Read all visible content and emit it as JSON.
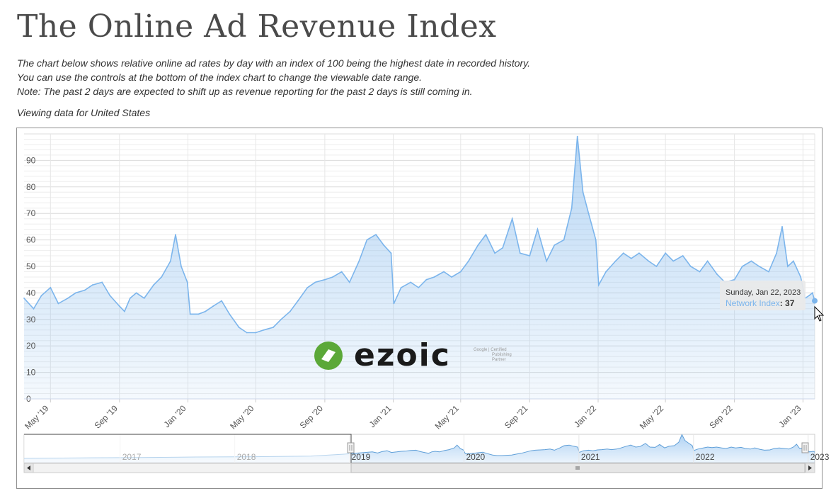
{
  "page": {
    "title": "The Online Ad Revenue Index",
    "desc_line1": "The chart below shows relative online ad rates by day with an index of 100 being the highest date in recorded history.",
    "desc_line2": "You can use the controls at the bottom of the index chart to change the viewable date range.",
    "desc_line3": "Note: The past 2 days are expected to shift up as revenue reporting for the past 2 days is still coming in.",
    "viewing": "Viewing data for United States"
  },
  "colors": {
    "series": "#7cb5ec",
    "grid": "#e6e6e6",
    "frame": "#8f8f8f"
  },
  "logo": {
    "text": "ezoic",
    "badge_line1": "Google | Certified",
    "badge_line2": "Publishing",
    "badge_line3": "Partner"
  },
  "tooltip": {
    "date": "Sunday, Jan 22, 2023",
    "series": "Network Index",
    "value": "37"
  },
  "chart_data": {
    "type": "area",
    "series_name": "Network Index",
    "ylim": [
      0,
      100
    ],
    "yticks": [
      0,
      10,
      20,
      30,
      40,
      50,
      60,
      70,
      80,
      90
    ],
    "xlim": [
      "2019-03-15",
      "2023-01-22"
    ],
    "xticks": [
      {
        "date": "2019-05-01",
        "label": "May '19"
      },
      {
        "date": "2019-09-01",
        "label": "Sep '19"
      },
      {
        "date": "2020-01-01",
        "label": "Jan '20"
      },
      {
        "date": "2020-05-01",
        "label": "May '20"
      },
      {
        "date": "2020-09-01",
        "label": "Sep '20"
      },
      {
        "date": "2021-01-01",
        "label": "Jan '21"
      },
      {
        "date": "2021-05-01",
        "label": "May '21"
      },
      {
        "date": "2021-09-01",
        "label": "Sep '21"
      },
      {
        "date": "2022-01-01",
        "label": "Jan '22"
      },
      {
        "date": "2022-05-01",
        "label": "May '22"
      },
      {
        "date": "2022-09-01",
        "label": "Sep '22"
      },
      {
        "date": "2023-01-01",
        "label": "Jan '23"
      }
    ],
    "points": [
      [
        "2019-03-15",
        38
      ],
      [
        "2019-04-01",
        34
      ],
      [
        "2019-04-15",
        39
      ],
      [
        "2019-05-01",
        42
      ],
      [
        "2019-05-15",
        36
      ],
      [
        "2019-06-01",
        38
      ],
      [
        "2019-06-15",
        40
      ],
      [
        "2019-07-01",
        41
      ],
      [
        "2019-07-15",
        43
      ],
      [
        "2019-08-01",
        44
      ],
      [
        "2019-08-15",
        39
      ],
      [
        "2019-09-01",
        35
      ],
      [
        "2019-09-10",
        33
      ],
      [
        "2019-09-20",
        38
      ],
      [
        "2019-10-01",
        40
      ],
      [
        "2019-10-15",
        38
      ],
      [
        "2019-11-01",
        43
      ],
      [
        "2019-11-15",
        46
      ],
      [
        "2019-12-01",
        52
      ],
      [
        "2019-12-10",
        62
      ],
      [
        "2019-12-20",
        50
      ],
      [
        "2019-12-31",
        44
      ],
      [
        "2020-01-05",
        32
      ],
      [
        "2020-01-20",
        32
      ],
      [
        "2020-02-01",
        33
      ],
      [
        "2020-02-15",
        35
      ],
      [
        "2020-03-01",
        37
      ],
      [
        "2020-03-15",
        32
      ],
      [
        "2020-04-01",
        27
      ],
      [
        "2020-04-15",
        25
      ],
      [
        "2020-05-01",
        25
      ],
      [
        "2020-05-15",
        26
      ],
      [
        "2020-06-01",
        27
      ],
      [
        "2020-06-15",
        30
      ],
      [
        "2020-07-01",
        33
      ],
      [
        "2020-07-15",
        37
      ],
      [
        "2020-08-01",
        42
      ],
      [
        "2020-08-15",
        44
      ],
      [
        "2020-09-01",
        45
      ],
      [
        "2020-09-15",
        46
      ],
      [
        "2020-10-01",
        48
      ],
      [
        "2020-10-15",
        44
      ],
      [
        "2020-11-01",
        52
      ],
      [
        "2020-11-15",
        60
      ],
      [
        "2020-12-01",
        62
      ],
      [
        "2020-12-15",
        58
      ],
      [
        "2020-12-28",
        55
      ],
      [
        "2021-01-02",
        36
      ],
      [
        "2021-01-15",
        42
      ],
      [
        "2021-02-01",
        44
      ],
      [
        "2021-02-15",
        42
      ],
      [
        "2021-03-01",
        45
      ],
      [
        "2021-03-15",
        46
      ],
      [
        "2021-04-01",
        48
      ],
      [
        "2021-04-15",
        46
      ],
      [
        "2021-05-01",
        48
      ],
      [
        "2021-05-15",
        52
      ],
      [
        "2021-06-01",
        58
      ],
      [
        "2021-06-15",
        62
      ],
      [
        "2021-07-01",
        55
      ],
      [
        "2021-07-15",
        57
      ],
      [
        "2021-08-01",
        68
      ],
      [
        "2021-08-15",
        55
      ],
      [
        "2021-09-01",
        54
      ],
      [
        "2021-09-15",
        64
      ],
      [
        "2021-10-01",
        52
      ],
      [
        "2021-10-15",
        58
      ],
      [
        "2021-11-01",
        60
      ],
      [
        "2021-11-15",
        72
      ],
      [
        "2021-11-25",
        99
      ],
      [
        "2021-12-05",
        78
      ],
      [
        "2021-12-15",
        70
      ],
      [
        "2021-12-28",
        60
      ],
      [
        "2022-01-02",
        43
      ],
      [
        "2022-01-15",
        48
      ],
      [
        "2022-02-01",
        52
      ],
      [
        "2022-02-15",
        55
      ],
      [
        "2022-03-01",
        53
      ],
      [
        "2022-03-15",
        55
      ],
      [
        "2022-04-01",
        52
      ],
      [
        "2022-04-15",
        50
      ],
      [
        "2022-05-01",
        55
      ],
      [
        "2022-05-15",
        52
      ],
      [
        "2022-06-01",
        54
      ],
      [
        "2022-06-15",
        50
      ],
      [
        "2022-07-01",
        48
      ],
      [
        "2022-07-15",
        52
      ],
      [
        "2022-08-01",
        47
      ],
      [
        "2022-08-15",
        44
      ],
      [
        "2022-09-01",
        45
      ],
      [
        "2022-09-15",
        50
      ],
      [
        "2022-10-01",
        52
      ],
      [
        "2022-10-15",
        50
      ],
      [
        "2022-11-01",
        48
      ],
      [
        "2022-11-15",
        55
      ],
      [
        "2022-11-25",
        65
      ],
      [
        "2022-12-05",
        50
      ],
      [
        "2022-12-15",
        52
      ],
      [
        "2022-12-28",
        46
      ],
      [
        "2023-01-05",
        38
      ],
      [
        "2023-01-12",
        39
      ],
      [
        "2023-01-18",
        40
      ],
      [
        "2023-01-22",
        37
      ]
    ],
    "navigator": {
      "labels": [
        "2017",
        "2018",
        "2019",
        "2020",
        "2021",
        "2022",
        "2023"
      ],
      "window": "2019 – 2023"
    }
  }
}
